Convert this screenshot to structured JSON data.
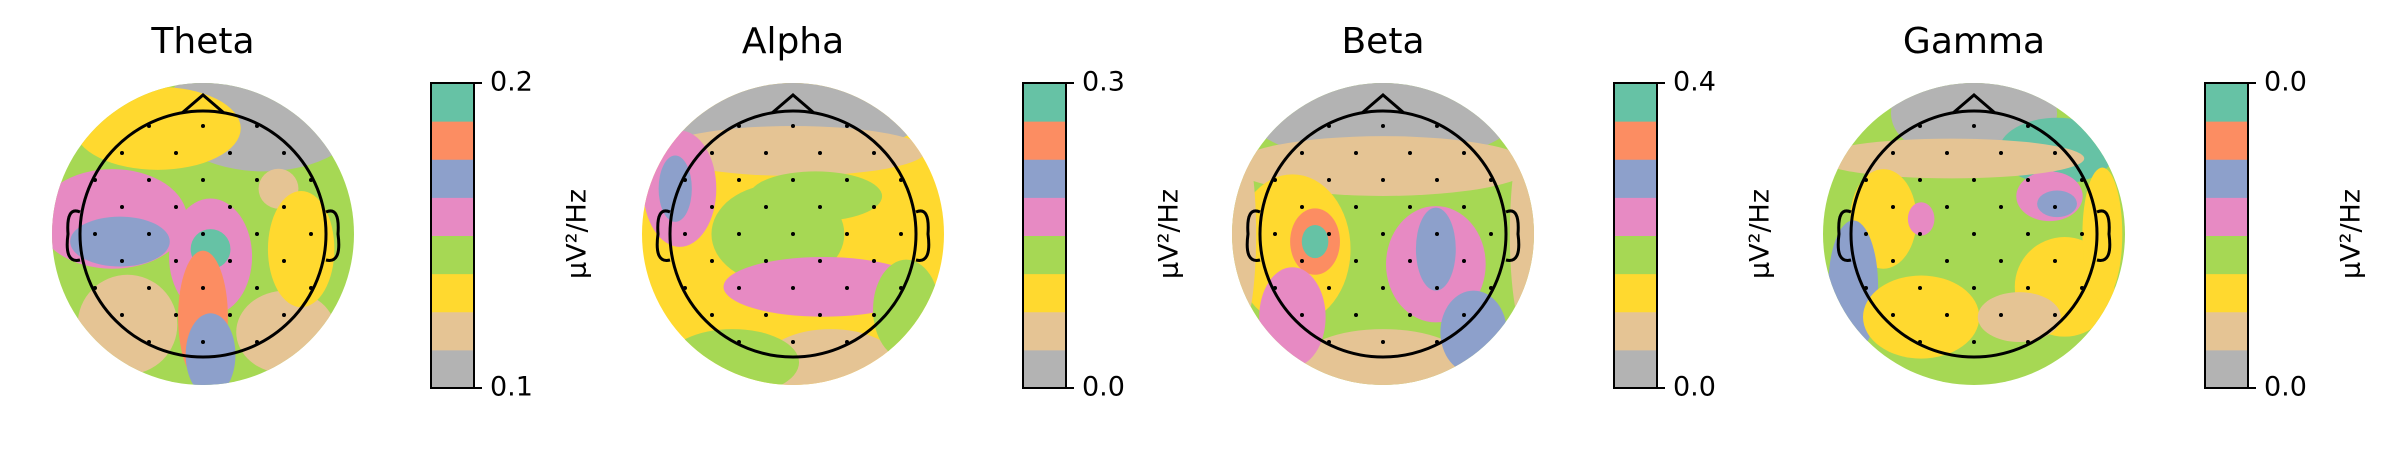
{
  "chart_data": [
    {
      "type": "topomap",
      "title": "Theta",
      "colorbar_label": "µV²/Hz",
      "ylim": [
        0.1,
        0.2
      ],
      "yticks": [
        0.1,
        0.2
      ],
      "colors": [
        "#b3b3b3",
        "#e5c494",
        "#ffd92f",
        "#a6d854",
        "#e78ac3",
        "#8da0cb",
        "#fc8d62",
        "#66c2a5"
      ]
    },
    {
      "type": "topomap",
      "title": "Alpha",
      "colorbar_label": "µV²/Hz",
      "ylim": [
        0,
        0.3
      ],
      "yticks": [
        {
          "value": 0,
          "label": "0.0"
        },
        0.3
      ],
      "colors": [
        "#b3b3b3",
        "#e5c494",
        "#ffd92f",
        "#a6d854",
        "#e78ac3",
        "#8da0cb",
        "#fc8d62",
        "#66c2a5"
      ]
    },
    {
      "type": "topomap",
      "title": "Beta",
      "colorbar_label": "µV²/Hz",
      "ylim": [
        0,
        0.4
      ],
      "yticks": [
        {
          "value": 0,
          "label": "0.0"
        },
        0.4
      ],
      "colors": [
        "#b3b3b3",
        "#e5c494",
        "#ffd92f",
        "#a6d854",
        "#e78ac3",
        "#8da0cb",
        "#fc8d62",
        "#66c2a5"
      ]
    },
    {
      "type": "topomap",
      "title": "Gamma",
      "colorbar_label": "µV²/Hz",
      "ylim": [
        0,
        0.04
      ],
      "yticks": [
        {
          "value": 0,
          "label": "0.0"
        },
        {
          "value": 0.04,
          "label": "0.0"
        }
      ],
      "colors": [
        "#b3b3b3",
        "#e5c494",
        "#ffd92f",
        "#a6d854",
        "#e78ac3",
        "#8da0cb",
        "#fc8d62",
        "#66c2a5"
      ]
    }
  ]
}
